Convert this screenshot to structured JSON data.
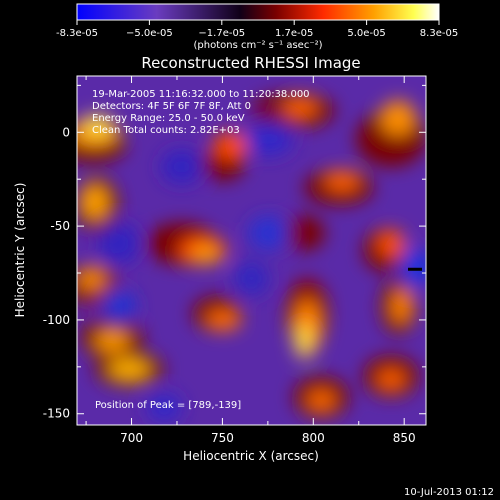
{
  "chart_data": {
    "type": "heatmap",
    "title": "Reconstructed RHESSI Image",
    "xlabel": "Heliocentric X (arcsec)",
    "ylabel": "Heliocentric Y (arcsec)",
    "xlim": [
      670,
      862
    ],
    "ylim": [
      -156,
      30
    ],
    "x_ticks": [
      700,
      750,
      800,
      850
    ],
    "y_ticks": [
      -150,
      -100,
      -50,
      0
    ],
    "colorbar": {
      "unit_label": "(photons cm⁻² s⁻¹ asec⁻²)",
      "range": [
        -8.3e-05,
        8.3e-05
      ],
      "tick_labels": [
        "-8.3e-05",
        "−5.0e-05",
        "−1.7e-05",
        "1.7e-05",
        "5.0e-05",
        "8.3e-05"
      ],
      "colors": [
        "#0000ff",
        "#6a3cc0",
        "#000000",
        "#aa0000",
        "#ff3300",
        "#ffa500",
        "#ffff40",
        "#ffffff"
      ]
    },
    "annotations": [
      "19-Mar-2005 11:16:32.000 to 11:20:38.000",
      "Detectors: 4F 5F 6F 7F 8F, Att 0",
      "Energy Range: 25.0 - 50.0 keV",
      "Clean     Total counts: 2.82E+03"
    ],
    "peak_label": "Position of Peak = [789,-139]",
    "peak": [
      789,
      -139
    ]
  },
  "footer_timestamp": "10-Jul-2013 01:12"
}
